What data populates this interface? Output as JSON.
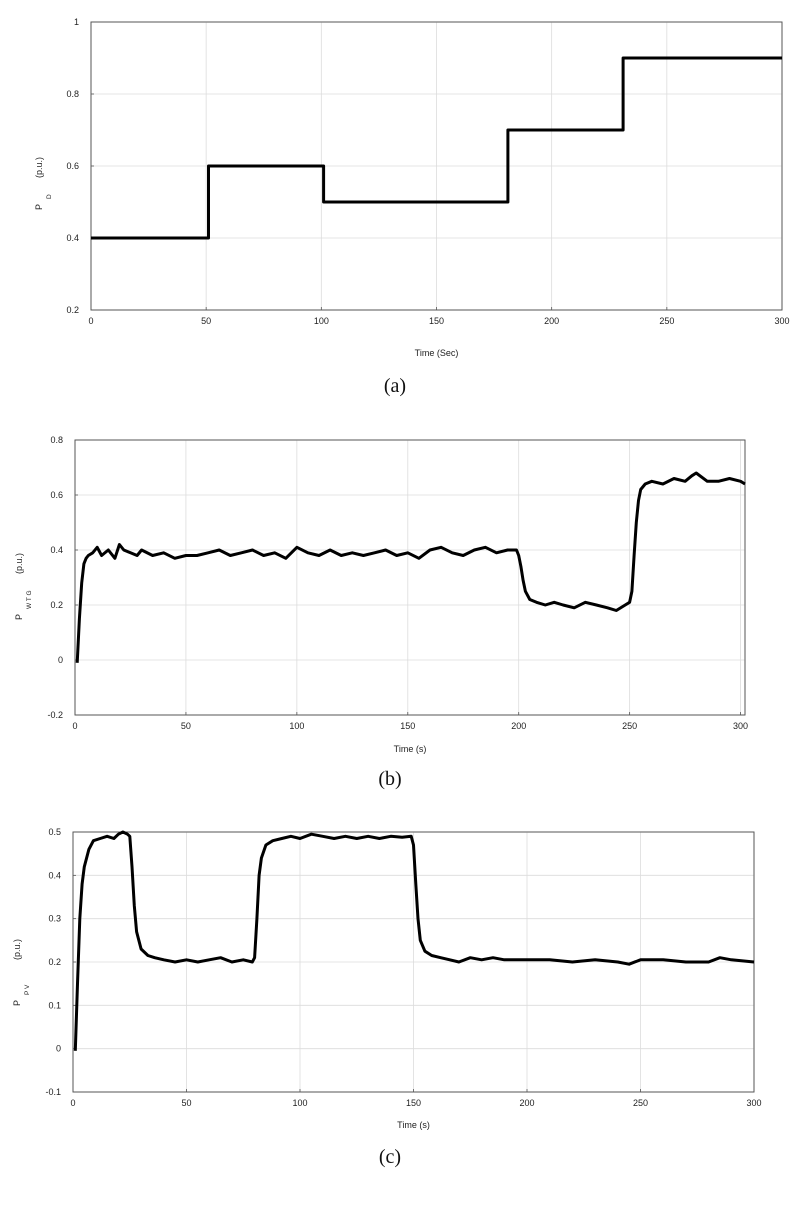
{
  "chart_data": [
    {
      "type": "line",
      "caption": "(a)",
      "xlabel": "Time (Sec)",
      "ylabel_main": "P",
      "ylabel_sub": "D",
      "ylabel_unit": "(p.u.)",
      "xlim": [
        0,
        300
      ],
      "ylim": [
        0.2,
        1
      ],
      "xticks": [
        0,
        50,
        100,
        150,
        200,
        250,
        300
      ],
      "xtick_labels": [
        "0",
        "50",
        "100",
        "150",
        "200",
        "250",
        "300"
      ],
      "yticks": [
        0.2,
        0.4,
        0.6,
        0.8,
        1
      ],
      "ytick_labels": [
        "0.2",
        "0.4",
        "0.6",
        "0.8",
        "1"
      ],
      "grid": true,
      "series": [
        {
          "x": [
            0,
            51,
            51,
            101,
            101,
            181,
            181,
            231,
            231,
            300
          ],
          "y": [
            0.4,
            0.4,
            0.6,
            0.6,
            0.5,
            0.5,
            0.7,
            0.7,
            0.9,
            0.9
          ]
        }
      ]
    },
    {
      "type": "line",
      "caption": "(b)",
      "xlabel": "Time (s)",
      "ylabel_main": "P",
      "ylabel_sub": "W T G",
      "ylabel_unit": "(p.u.)",
      "xlim": [
        0,
        302
      ],
      "ylim": [
        -0.2,
        0.8
      ],
      "xticks": [
        0,
        50,
        100,
        150,
        200,
        250,
        300
      ],
      "xtick_labels": [
        "0",
        "50",
        "100",
        "150",
        "200",
        "250",
        "300"
      ],
      "yticks": [
        -0.2,
        0,
        0.2,
        0.4,
        0.6,
        0.8
      ],
      "ytick_labels": [
        "-0.2",
        "0",
        "0.2",
        "0.4",
        "0.6",
        "0.8"
      ],
      "grid": true,
      "series": [
        {
          "x": [
            1,
            2,
            3,
            4,
            5,
            6,
            8,
            10,
            12,
            15,
            18,
            20,
            22,
            25,
            28,
            30,
            35,
            40,
            45,
            50,
            55,
            60,
            65,
            70,
            75,
            80,
            85,
            90,
            95,
            100,
            105,
            110,
            115,
            120,
            125,
            130,
            135,
            140,
            145,
            150,
            155,
            160,
            165,
            170,
            175,
            180,
            185,
            190,
            195,
            199,
            200,
            201,
            202,
            203,
            205,
            208,
            212,
            216,
            220,
            225,
            230,
            235,
            240,
            244,
            248,
            250,
            251,
            252,
            253,
            254,
            255,
            257,
            260,
            265,
            270,
            275,
            278,
            280,
            285,
            290,
            295,
            300,
            302
          ],
          "y": [
            -0.01,
            0.15,
            0.28,
            0.35,
            0.37,
            0.38,
            0.39,
            0.41,
            0.38,
            0.4,
            0.37,
            0.42,
            0.4,
            0.39,
            0.38,
            0.4,
            0.38,
            0.39,
            0.37,
            0.38,
            0.38,
            0.39,
            0.4,
            0.38,
            0.39,
            0.4,
            0.38,
            0.39,
            0.37,
            0.41,
            0.39,
            0.38,
            0.4,
            0.38,
            0.39,
            0.38,
            0.39,
            0.4,
            0.38,
            0.39,
            0.37,
            0.4,
            0.41,
            0.39,
            0.38,
            0.4,
            0.41,
            0.39,
            0.4,
            0.4,
            0.38,
            0.34,
            0.29,
            0.25,
            0.22,
            0.21,
            0.2,
            0.21,
            0.2,
            0.19,
            0.21,
            0.2,
            0.19,
            0.18,
            0.2,
            0.21,
            0.25,
            0.38,
            0.5,
            0.58,
            0.62,
            0.64,
            0.65,
            0.64,
            0.66,
            0.65,
            0.67,
            0.68,
            0.65,
            0.65,
            0.66,
            0.65,
            0.64
          ]
        }
      ]
    },
    {
      "type": "line",
      "caption": "(c)",
      "xlabel": "Time (s)",
      "ylabel_main": "P",
      "ylabel_sub": "P V",
      "ylabel_unit": "(p.u.)",
      "xlim": [
        0,
        300
      ],
      "ylim": [
        -0.1,
        0.5
      ],
      "xticks": [
        0,
        50,
        100,
        150,
        200,
        250,
        300
      ],
      "xtick_labels": [
        "0",
        "50",
        "100",
        "150",
        "200",
        "250",
        "300"
      ],
      "yticks": [
        -0.1,
        0,
        0.1,
        0.2,
        0.3,
        0.4,
        0.5
      ],
      "ytick_labels": [
        "-0.1",
        "0",
        "0.1",
        "0.2",
        "0.3",
        "0.4",
        "0.5"
      ],
      "grid": true,
      "series": [
        {
          "x": [
            1,
            2,
            3,
            4,
            5,
            7,
            9,
            12,
            15,
            18,
            20,
            22,
            24,
            25,
            26,
            27,
            28,
            30,
            33,
            36,
            40,
            45,
            50,
            55,
            60,
            65,
            70,
            75,
            79,
            80,
            81,
            82,
            83,
            85,
            88,
            92,
            96,
            100,
            105,
            110,
            115,
            120,
            125,
            130,
            135,
            140,
            145,
            149,
            150,
            151,
            152,
            153,
            155,
            158,
            162,
            166,
            170,
            175,
            180,
            185,
            190,
            200,
            210,
            220,
            230,
            240,
            245,
            250,
            260,
            270,
            280,
            285,
            290,
            300
          ],
          "y": [
            -0.005,
            0.15,
            0.3,
            0.38,
            0.42,
            0.46,
            0.48,
            0.485,
            0.49,
            0.485,
            0.495,
            0.5,
            0.495,
            0.49,
            0.42,
            0.33,
            0.27,
            0.23,
            0.215,
            0.21,
            0.205,
            0.2,
            0.205,
            0.2,
            0.205,
            0.21,
            0.2,
            0.205,
            0.2,
            0.21,
            0.3,
            0.4,
            0.44,
            0.47,
            0.48,
            0.485,
            0.49,
            0.485,
            0.495,
            0.49,
            0.485,
            0.49,
            0.485,
            0.49,
            0.485,
            0.49,
            0.488,
            0.49,
            0.47,
            0.38,
            0.3,
            0.25,
            0.225,
            0.215,
            0.21,
            0.205,
            0.2,
            0.21,
            0.205,
            0.21,
            0.205,
            0.205,
            0.205,
            0.2,
            0.205,
            0.2,
            0.195,
            0.205,
            0.205,
            0.2,
            0.2,
            0.21,
            0.205,
            0.2
          ]
        }
      ]
    }
  ]
}
